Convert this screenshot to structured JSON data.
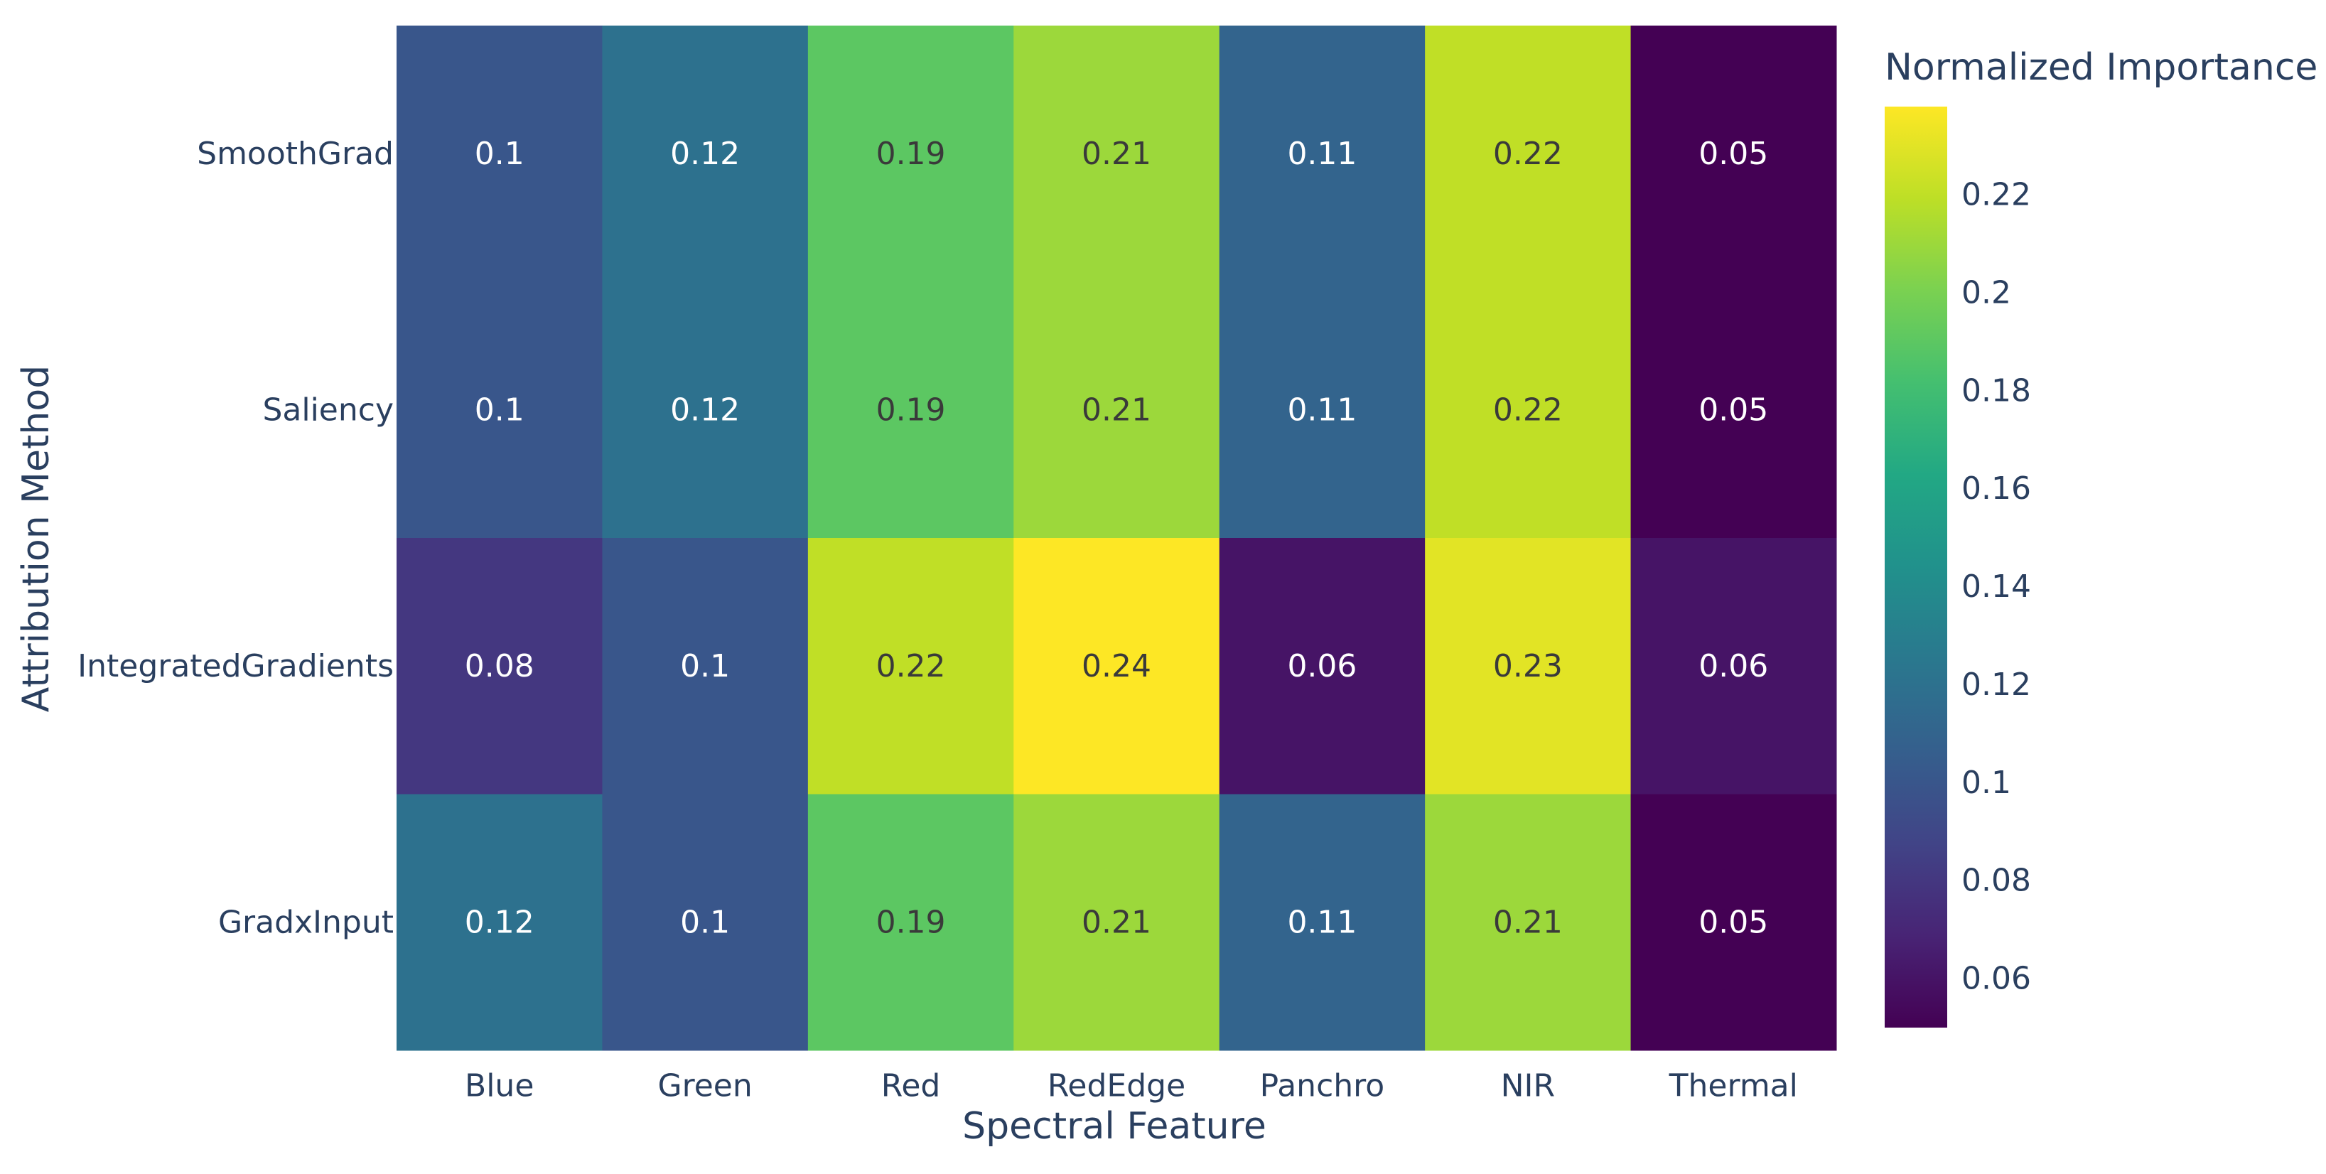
{
  "chart_data": {
    "type": "heatmap",
    "title": "",
    "xlabel": "Spectral Feature",
    "ylabel": "Attribution Method",
    "x_categories": [
      "Blue",
      "Green",
      "Red",
      "RedEdge",
      "Panchro",
      "NIR",
      "Thermal"
    ],
    "y_categories": [
      "SmoothGrad",
      "Saliency",
      "IntegratedGradients",
      "GradxInput"
    ],
    "values": [
      [
        0.1,
        0.12,
        0.19,
        0.21,
        0.11,
        0.22,
        0.05
      ],
      [
        0.1,
        0.12,
        0.19,
        0.21,
        0.11,
        0.22,
        0.05
      ],
      [
        0.08,
        0.1,
        0.22,
        0.24,
        0.06,
        0.23,
        0.06
      ],
      [
        0.12,
        0.1,
        0.19,
        0.21,
        0.11,
        0.21,
        0.05
      ]
    ],
    "colorscale": "Viridis",
    "colorbar": {
      "title": "Normalized Importance",
      "range": [
        0.05,
        0.238
      ],
      "ticks": [
        0.06,
        0.08,
        0.1,
        0.12,
        0.14,
        0.16,
        0.18,
        0.2,
        0.22
      ],
      "tick_labels": [
        "0.06",
        "0.08",
        "0.1",
        "0.12",
        "0.14",
        "0.16",
        "0.18",
        "0.2",
        "0.22"
      ]
    },
    "label_color_threshold": 0.15,
    "text_colors": {
      "light": "#ffffff",
      "dark": "#3a3a3a"
    },
    "axis_text_color": "#2a3f5f"
  }
}
